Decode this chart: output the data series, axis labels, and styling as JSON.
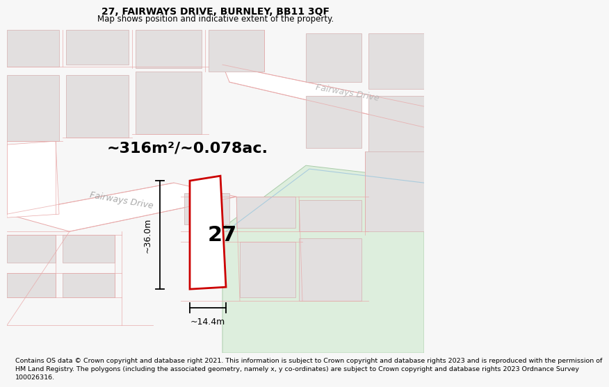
{
  "title": "27, FAIRWAYS DRIVE, BURNLEY, BB11 3QF",
  "subtitle": "Map shows position and indicative extent of the property.",
  "area_label": "~316m²/~0.078ac.",
  "property_number": "27",
  "dim_height": "~36.0m",
  "dim_width": "~14.4m",
  "road_label_1": "Fairways Drive",
  "road_label_2": "Fairways Drive",
  "footer_lines": [
    "Contains OS data © Crown copyright and database right 2021. This information is subject to Crown copyright and database rights 2023 and is reproduced with the permission of",
    "HM Land Registry. The polygons (including the associated geometry, namely x, y co-ordinates) are subject to Crown copyright and database rights 2023 Ordnance Survey",
    "100026316."
  ],
  "bg_color": "#f7f7f7",
  "map_bg": "#eeecec",
  "plot_fill": "#ffffff",
  "plot_outline": "#cc0000",
  "green_fill": "#ddeedd",
  "green_edge": "#aaccaa",
  "block_fill": "#e2dfdf",
  "block_edge": "#d4b0b0",
  "road_fill": "#ffffff",
  "road_edge": "#e8a8a8",
  "road_line": "#e8a8a8",
  "title_fontsize": 10,
  "subtitle_fontsize": 8.5,
  "area_fontsize": 16,
  "num_fontsize": 22,
  "dim_fontsize": 9,
  "road_fontsize": 9,
  "footer_fontsize": 6.8
}
